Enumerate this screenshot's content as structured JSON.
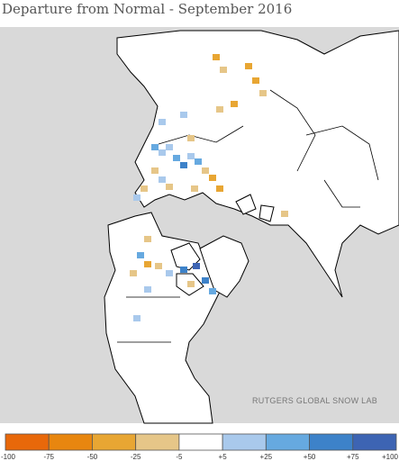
{
  "title": "Departure from Normal - September 2016",
  "credit": "RUTGERS GLOBAL SNOW LAB",
  "legend": {
    "labels": [
      "-100",
      "-75",
      "-50",
      "-25",
      "-5",
      "+5",
      "+25",
      "+50",
      "+75",
      "+100"
    ],
    "colors": [
      "#e8680a",
      "#e8860f",
      "#e8a633",
      "#e6c688",
      "#ffffff",
      "#a9c9ec",
      "#66a9e0",
      "#3d82c9",
      "#3d64b3"
    ]
  }
}
